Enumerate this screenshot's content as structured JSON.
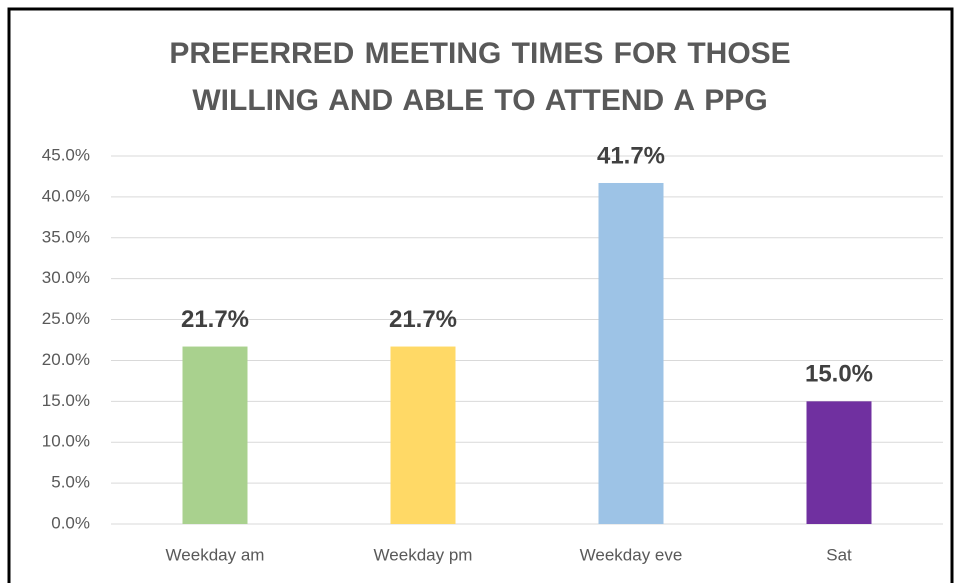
{
  "chart_data": {
    "type": "bar",
    "title": "PREFERRED MEETING TIMES FOR THOSE WILLING AND ABLE TO ATTEND A PPG",
    "categories": [
      "Weekday am",
      "Weekday pm",
      "Weekday eve",
      "Sat"
    ],
    "values": [
      21.7,
      21.7,
      41.7,
      15.0
    ],
    "value_labels": [
      "21.7%",
      "21.7%",
      "41.7%",
      "15.0%"
    ],
    "colors": [
      "#a9d18e",
      "#ffd966",
      "#9dc3e6",
      "#7030a0"
    ],
    "ylim": [
      0,
      45
    ],
    "yticks": [
      {
        "value": 0,
        "label": "0.0%"
      },
      {
        "value": 5,
        "label": "5.0%"
      },
      {
        "value": 10,
        "label": "10.0%"
      },
      {
        "value": 15,
        "label": "15.0%"
      },
      {
        "value": 20,
        "label": "20.0%"
      },
      {
        "value": 25,
        "label": "25.0%"
      },
      {
        "value": 30,
        "label": "30.0%"
      },
      {
        "value": 35,
        "label": "35.0%"
      },
      {
        "value": 40,
        "label": "40.0%"
      },
      {
        "value": 45,
        "label": "45.0%"
      }
    ],
    "grid": true
  }
}
